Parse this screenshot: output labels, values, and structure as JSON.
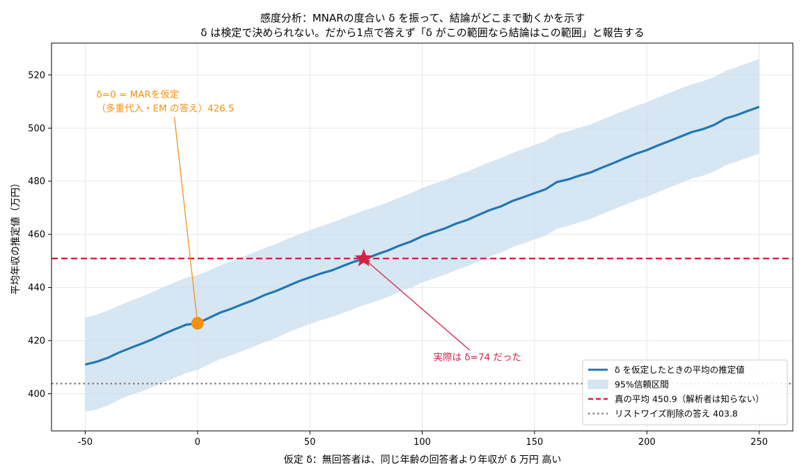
{
  "chart_data": {
    "type": "line",
    "title": "感度分析：MNARの度合い δ を振って、結論がどこまで動くかを示す",
    "subtitle": "δ は検定で決められない。だから1点で答えず「δ がこの範囲なら結論はこの範囲」と報告する",
    "xlabel": "仮定 δ：無回答者は、同じ年齢の回答者より年収が δ 万円 高い",
    "ylabel": "平均年収の推定値（万円）",
    "xlim": [
      -65,
      265
    ],
    "ylim": [
      386,
      532
    ],
    "xticks": [
      -50,
      0,
      50,
      100,
      150,
      200,
      250
    ],
    "yticks": [
      400,
      420,
      440,
      460,
      480,
      500,
      520
    ],
    "xtick_labels": [
      "-50",
      "0",
      "50",
      "100",
      "150",
      "200",
      "250"
    ],
    "ytick_labels": [
      "400",
      "420",
      "440",
      "460",
      "480",
      "500",
      "520"
    ],
    "grid": true,
    "legend_position": "bottom-right",
    "colors": {
      "estimate": "#1f77b4",
      "band": "#c6dcee",
      "true_mean": "#d62045",
      "listwise": "#808080",
      "mar_point": "#f5900e"
    },
    "x": [
      -50,
      -45,
      -40,
      -35,
      -30,
      -25,
      -20,
      -15,
      -10,
      -5,
      0,
      5,
      10,
      15,
      20,
      25,
      30,
      35,
      40,
      45,
      50,
      55,
      60,
      65,
      70,
      75,
      80,
      85,
      90,
      95,
      100,
      105,
      110,
      115,
      120,
      125,
      130,
      135,
      140,
      145,
      150,
      155,
      160,
      165,
      170,
      175,
      180,
      185,
      190,
      195,
      200,
      205,
      210,
      215,
      220,
      225,
      230,
      235,
      240,
      245,
      250
    ],
    "series": [
      {
        "name": "δ を仮定したときの平均の推定値",
        "values": [
          411.0,
          412.0,
          413.5,
          415.5,
          417.2,
          418.8,
          420.5,
          422.5,
          424.3,
          426.0,
          426.5,
          428.5,
          430.5,
          432.0,
          433.7,
          435.3,
          437.2,
          438.7,
          440.5,
          442.3,
          443.8,
          445.3,
          446.5,
          448.2,
          449.8,
          450.9,
          452.5,
          454.0,
          455.8,
          457.3,
          459.3,
          460.8,
          462.2,
          464.0,
          465.4,
          467.3,
          469.1,
          470.5,
          472.5,
          474.0,
          475.5,
          477.0,
          479.7,
          480.7,
          482.1,
          483.3,
          485.1,
          486.8,
          488.6,
          490.3,
          491.7,
          493.5,
          495.1,
          496.8,
          498.5,
          499.6,
          501.2,
          503.6,
          504.9,
          506.5,
          508.0
        ]
      }
    ],
    "band": {
      "name": "95%信頼区間",
      "lower": [
        393.2,
        394.0,
        395.5,
        397.7,
        399.5,
        400.8,
        402.5,
        404.3,
        406.0,
        407.8,
        409.0,
        411.0,
        413.0,
        414.5,
        416.1,
        417.7,
        419.5,
        421.0,
        423.0,
        424.7,
        426.2,
        427.7,
        428.9,
        430.5,
        432.1,
        433.6,
        435.0,
        436.5,
        438.4,
        439.9,
        441.9,
        443.3,
        444.8,
        446.5,
        447.9,
        449.8,
        451.7,
        453.1,
        455.1,
        456.6,
        458.1,
        459.6,
        462.1,
        463.2,
        464.5,
        465.8,
        467.6,
        469.3,
        471.1,
        472.7,
        474.1,
        475.9,
        477.6,
        479.3,
        481.0,
        482.1,
        483.6,
        486.0,
        487.4,
        488.9,
        490.4
      ],
      "upper": [
        428.7,
        429.8,
        431.3,
        433.2,
        434.9,
        436.5,
        438.3,
        440.2,
        442.0,
        443.7,
        444.6,
        446.3,
        448.3,
        449.9,
        451.5,
        453.1,
        454.9,
        456.4,
        458.3,
        460.0,
        461.6,
        463.1,
        464.5,
        466.1,
        467.7,
        469.2,
        470.6,
        472.1,
        473.9,
        475.5,
        477.5,
        479.0,
        480.4,
        482.1,
        483.6,
        485.4,
        487.2,
        488.7,
        490.6,
        492.1,
        493.6,
        495.2,
        497.7,
        498.8,
        500.1,
        501.4,
        503.2,
        504.9,
        506.6,
        508.3,
        509.7,
        511.5,
        513.2,
        514.9,
        516.5,
        517.7,
        519.2,
        521.5,
        523.0,
        524.5,
        526.0
      ]
    },
    "hlines": [
      {
        "name": "真の平均 450.9（解析者は知らない）",
        "y": 450.9,
        "style": "dashed",
        "color_key": "true_mean"
      },
      {
        "name": "リストワイズ削除の答え 403.8",
        "y": 403.8,
        "style": "dotted",
        "color_key": "listwise"
      }
    ],
    "markers": [
      {
        "id": "mar",
        "x": 0,
        "y": 426.5,
        "shape": "circle",
        "color_key": "mar_point"
      },
      {
        "id": "truth",
        "x": 74,
        "y": 450.9,
        "shape": "star",
        "color_key": "true_mean"
      }
    ],
    "annotations": [
      {
        "id": "mar",
        "lines": [
          "δ=0 = MARを仮定",
          "（多重代入・EM の答え）426.5"
        ],
        "text_x": -45,
        "text_y": 511.5,
        "arrow_to_x": 0,
        "arrow_to_y": 426.5,
        "color_key": "mar_point"
      },
      {
        "id": "truth",
        "lines": [
          "実際は δ=74 だった"
        ],
        "text_x": 105,
        "text_y": 412.5,
        "arrow_to_x": 74,
        "arrow_to_y": 450.9,
        "color_key": "true_mean"
      }
    ],
    "legend": [
      {
        "label": "δ を仮定したときの平均の推定値",
        "kind": "line"
      },
      {
        "label": "95%信頼区間",
        "kind": "patch"
      },
      {
        "label": "真の平均 450.9（解析者は知らない）",
        "kind": "dashed"
      },
      {
        "label": "リストワイズ削除の答え 403.8",
        "kind": "dotted"
      }
    ]
  }
}
